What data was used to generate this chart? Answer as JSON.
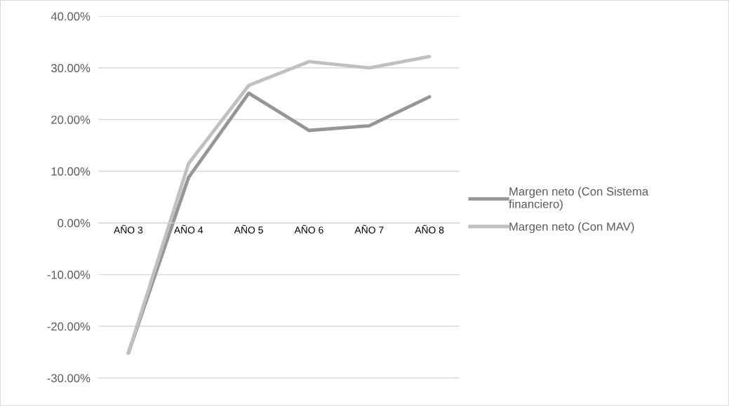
{
  "chart_data": {
    "type": "line",
    "categories": [
      "AÑO 3",
      "AÑO 4",
      "AÑO 5",
      "AÑO 6",
      "AÑO 7",
      "AÑO 8"
    ],
    "series": [
      {
        "name": "Margen neto (Con Sistema financiero)",
        "color": "#969696",
        "values": [
          -25.2,
          8.8,
          25.1,
          17.9,
          18.8,
          24.4
        ]
      },
      {
        "name": "Margen neto (Con MAV)",
        "color": "#c0c0c0",
        "values": [
          -25.2,
          11.5,
          26.6,
          31.2,
          30.0,
          32.2
        ]
      }
    ],
    "ylim": [
      -35,
      40
    ],
    "yticks": [
      {
        "value": -30,
        "label": "-30.00%"
      },
      {
        "value": -20,
        "label": "-20.00%"
      },
      {
        "value": -10,
        "label": "-10.00%"
      },
      {
        "value": 0,
        "label": "0.00%"
      },
      {
        "value": 10,
        "label": "10.00%"
      },
      {
        "value": 20,
        "label": "20.00%"
      },
      {
        "value": 30,
        "label": "30.00%"
      },
      {
        "value": 40,
        "label": "40.00%"
      }
    ],
    "grid": "y",
    "legend": "right",
    "marker": "none",
    "line_style": "solid"
  }
}
